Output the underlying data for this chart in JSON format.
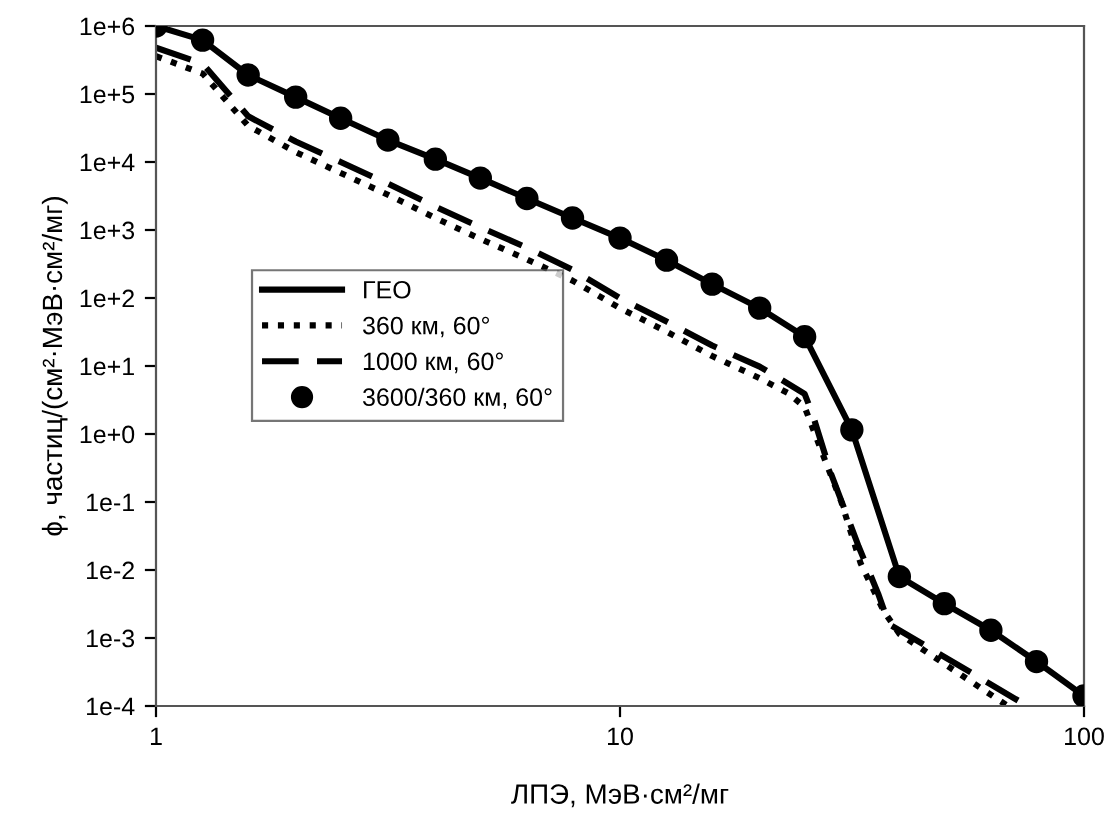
{
  "chart_data": {
    "type": "line",
    "xlabel": "ЛПЭ, МэВ·см²/мг",
    "ylabel": "ϕ, частиц/(см²·МэВ·см²/мг)",
    "log": "xy",
    "grid": false,
    "legend": "center left",
    "xlim": [
      1,
      100
    ],
    "xticks": [
      1,
      10,
      100
    ],
    "ylim": [
      0.0001,
      1000000
    ],
    "yticks": [
      {
        "value": 0.0001,
        "label": "1e-4"
      },
      {
        "value": 0.001,
        "label": "1e-3"
      },
      {
        "value": 0.01,
        "label": "1e-2"
      },
      {
        "value": 0.1,
        "label": "1e-1"
      },
      {
        "value": 1,
        "label": "1e+0"
      },
      {
        "value": 10,
        "label": "1e+1"
      },
      {
        "value": 100,
        "label": "1e+2"
      },
      {
        "value": 1000,
        "label": "1e+3"
      },
      {
        "value": 10000,
        "label": "1e+4"
      },
      {
        "value": 100000,
        "label": "1e+5"
      },
      {
        "value": 1000000,
        "label": "1e+6"
      }
    ],
    "series": [
      {
        "name": "ГЕО",
        "line_style": "solid",
        "marker": "none",
        "color": "#000000",
        "x": [
          1,
          1.26,
          1.58,
          2,
          2.5,
          3.16,
          4,
          5,
          6.3,
          7.9,
          10,
          12.6,
          15.8,
          20,
          25,
          31.6,
          40,
          50,
          63,
          79,
          100
        ],
        "values": [
          1000000,
          620000,
          190000,
          90000,
          44000,
          21000,
          11000,
          5800,
          2900,
          1500,
          760,
          360,
          160,
          71,
          27,
          1.15,
          0.008,
          0.0032,
          0.0013,
          0.00045,
          0.00014
        ]
      },
      {
        "name": "360 км, 60°",
        "line_style": "dotted",
        "marker": "none",
        "color": "#000000",
        "x": [
          1,
          1.26,
          1.58,
          2,
          2.5,
          3.16,
          4,
          5,
          6.3,
          7.9,
          10,
          12.6,
          15.8,
          20,
          23,
          25,
          27,
          30,
          33,
          37,
          40,
          68.5
        ],
        "values": [
          360000,
          200000,
          34000,
          14000,
          6900,
          3300,
          1500,
          740,
          370,
          180,
          71,
          32,
          14,
          6.6,
          4.0,
          2.5,
          0.63,
          0.1,
          0.0126,
          0.0025,
          0.00115,
          0.0001
        ]
      },
      {
        "name": "1000 км, 60°",
        "line_style": "dashed",
        "marker": "none",
        "color": "#000000",
        "x": [
          1,
          1.26,
          1.58,
          2,
          2.5,
          3.16,
          4,
          5,
          6.3,
          7.9,
          10,
          12.6,
          15.8,
          20,
          25,
          26,
          28.5,
          32.7,
          36,
          38,
          75.5
        ],
        "values": [
          480000,
          280000,
          47000,
          20000,
          10000,
          4800,
          2200,
          1100,
          550,
          260,
          100,
          45,
          20,
          9.8,
          3.9,
          1.95,
          0.26,
          0.022,
          0.0045,
          0.0016,
          0.0001
        ]
      },
      {
        "name": "3600/360 км, 60°",
        "type": "scatter",
        "marker": "circle",
        "color": "#000000",
        "x": [
          1,
          1.26,
          1.58,
          2,
          2.5,
          3.16,
          4,
          5,
          6.3,
          7.9,
          10,
          12.6,
          15.8,
          20,
          25,
          31.6,
          40,
          50,
          63,
          79,
          100
        ],
        "values": [
          1000000,
          620000,
          190000,
          90000,
          44000,
          21000,
          11000,
          5800,
          2900,
          1500,
          760,
          360,
          160,
          71,
          27,
          1.15,
          0.008,
          0.0032,
          0.0013,
          0.00045,
          0.00014
        ]
      }
    ]
  }
}
